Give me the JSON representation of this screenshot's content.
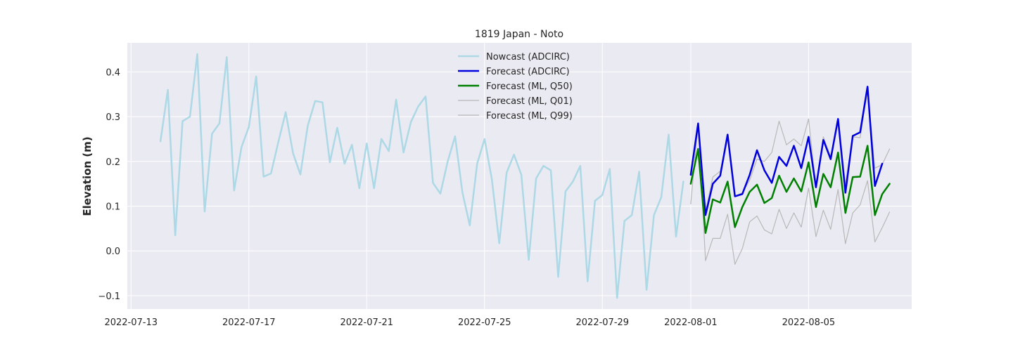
{
  "chart_data": {
    "type": "line",
    "title": "1819 Japan - Noto",
    "xlabel": "",
    "ylabel": "Elevation (m)",
    "xlim": [
      "2022-07-12T21:00",
      "2022-08-08T12:00"
    ],
    "ylim": [
      -0.13,
      0.465
    ],
    "xticks": [
      "2022-07-13",
      "2022-07-17",
      "2022-07-21",
      "2022-07-25",
      "2022-07-29",
      "2022-08-01",
      "2022-08-05"
    ],
    "yticks": [
      -0.1,
      0.0,
      0.1,
      0.2,
      0.3,
      0.4
    ],
    "ytick_labels": [
      "−0.1",
      "0.0",
      "0.1",
      "0.2",
      "0.3",
      "0.4"
    ],
    "grid": true,
    "legend_position": "top-center",
    "series": [
      {
        "name": "Nowcast (ADCIRC)",
        "color": "#add8e6",
        "width": 2.5,
        "x": [
          "2022-07-14T00:00",
          "2022-07-14T06:00",
          "2022-07-14T12:00",
          "2022-07-14T18:00",
          "2022-07-15T00:00",
          "2022-07-15T06:00",
          "2022-07-15T12:00",
          "2022-07-15T18:00",
          "2022-07-16T00:00",
          "2022-07-16T06:00",
          "2022-07-16T12:00",
          "2022-07-16T18:00",
          "2022-07-17T00:00",
          "2022-07-17T06:00",
          "2022-07-17T12:00",
          "2022-07-17T18:00",
          "2022-07-18T00:00",
          "2022-07-18T06:00",
          "2022-07-18T12:00",
          "2022-07-18T18:00",
          "2022-07-19T00:00",
          "2022-07-19T06:00",
          "2022-07-19T12:00",
          "2022-07-19T18:00",
          "2022-07-20T00:00",
          "2022-07-20T06:00",
          "2022-07-20T12:00",
          "2022-07-20T18:00",
          "2022-07-21T00:00",
          "2022-07-21T06:00",
          "2022-07-21T12:00",
          "2022-07-21T18:00",
          "2022-07-22T00:00",
          "2022-07-22T06:00",
          "2022-07-22T12:00",
          "2022-07-22T18:00",
          "2022-07-23T00:00",
          "2022-07-23T06:00",
          "2022-07-23T12:00",
          "2022-07-23T18:00",
          "2022-07-24T00:00",
          "2022-07-24T06:00",
          "2022-07-24T12:00",
          "2022-07-24T18:00",
          "2022-07-25T00:00",
          "2022-07-25T06:00",
          "2022-07-25T12:00",
          "2022-07-25T18:00",
          "2022-07-26T00:00",
          "2022-07-26T06:00",
          "2022-07-26T12:00",
          "2022-07-26T18:00",
          "2022-07-27T00:00",
          "2022-07-27T06:00",
          "2022-07-27T12:00",
          "2022-07-27T18:00",
          "2022-07-28T00:00",
          "2022-07-28T06:00",
          "2022-07-28T12:00",
          "2022-07-28T18:00",
          "2022-07-29T00:00",
          "2022-07-29T06:00",
          "2022-07-29T12:00",
          "2022-07-29T18:00",
          "2022-07-30T00:00",
          "2022-07-30T06:00",
          "2022-07-30T12:00",
          "2022-07-30T18:00",
          "2022-07-31T00:00",
          "2022-07-31T06:00",
          "2022-07-31T12:00",
          "2022-07-31T18:00"
        ],
        "y": [
          0.245,
          0.36,
          0.035,
          0.29,
          0.3,
          0.44,
          0.088,
          0.262,
          0.285,
          0.433,
          0.135,
          0.232,
          0.277,
          0.39,
          0.166,
          0.173,
          0.243,
          0.31,
          0.218,
          0.171,
          0.28,
          0.335,
          0.332,
          0.198,
          0.275,
          0.195,
          0.237,
          0.14,
          0.24,
          0.14,
          0.25,
          0.223,
          0.338,
          0.22,
          0.288,
          0.323,
          0.345,
          0.152,
          0.128,
          0.2,
          0.256,
          0.13,
          0.057,
          0.195,
          0.25,
          0.16,
          0.017,
          0.175,
          0.215,
          0.17,
          -0.02,
          0.162,
          0.19,
          0.18,
          -0.058,
          0.133,
          0.155,
          0.19,
          -0.068,
          0.112,
          0.125,
          0.183,
          -0.105,
          0.067,
          0.08,
          0.177,
          -0.087,
          0.08,
          0.12,
          0.26,
          0.032,
          0.155
        ]
      },
      {
        "name": "Forecast (ADCIRC)",
        "color": "#0000dd",
        "width": 2.5,
        "x": [
          "2022-08-01T00:00",
          "2022-08-01T06:00",
          "2022-08-01T12:00",
          "2022-08-01T18:00",
          "2022-08-02T00:00",
          "2022-08-02T06:00",
          "2022-08-02T12:00",
          "2022-08-02T18:00",
          "2022-08-03T00:00",
          "2022-08-03T06:00",
          "2022-08-03T12:00",
          "2022-08-03T18:00",
          "2022-08-04T00:00",
          "2022-08-04T06:00",
          "2022-08-04T12:00",
          "2022-08-04T18:00",
          "2022-08-05T00:00",
          "2022-08-05T06:00",
          "2022-08-05T12:00",
          "2022-08-05T18:00",
          "2022-08-06T00:00",
          "2022-08-06T06:00",
          "2022-08-06T12:00",
          "2022-08-06T18:00",
          "2022-08-07T00:00",
          "2022-08-07T06:00",
          "2022-08-07T12:00"
        ],
        "y": [
          0.17,
          0.285,
          0.08,
          0.15,
          0.168,
          0.26,
          0.122,
          0.127,
          0.17,
          0.225,
          0.18,
          0.152,
          0.21,
          0.19,
          0.235,
          0.185,
          0.255,
          0.142,
          0.248,
          0.205,
          0.295,
          0.13,
          0.257,
          0.265,
          0.367,
          0.145,
          0.195
        ]
      },
      {
        "name": "Forecast (ML, Q50)",
        "color": "#008000",
        "width": 2.5,
        "x": [
          "2022-08-01T00:00",
          "2022-08-01T06:00",
          "2022-08-01T12:00",
          "2022-08-01T18:00",
          "2022-08-02T00:00",
          "2022-08-02T06:00",
          "2022-08-02T12:00",
          "2022-08-02T18:00",
          "2022-08-03T00:00",
          "2022-08-03T06:00",
          "2022-08-03T12:00",
          "2022-08-03T18:00",
          "2022-08-04T00:00",
          "2022-08-04T06:00",
          "2022-08-04T12:00",
          "2022-08-04T18:00",
          "2022-08-05T00:00",
          "2022-08-05T06:00",
          "2022-08-05T12:00",
          "2022-08-05T18:00",
          "2022-08-06T00:00",
          "2022-08-06T06:00",
          "2022-08-06T12:00",
          "2022-08-06T18:00",
          "2022-08-07T00:00",
          "2022-08-07T06:00",
          "2022-08-07T12:00",
          "2022-08-07T18:00"
        ],
        "y": [
          0.15,
          0.228,
          0.04,
          0.115,
          0.108,
          0.155,
          0.053,
          0.098,
          0.132,
          0.148,
          0.107,
          0.118,
          0.168,
          0.132,
          0.162,
          0.133,
          0.198,
          0.098,
          0.172,
          0.142,
          0.22,
          0.085,
          0.165,
          0.166,
          0.235,
          0.08,
          0.127,
          0.15
        ]
      },
      {
        "name": "Forecast (ML, Q01)",
        "color": "#b8b8b8",
        "width": 1.2,
        "x": [
          "2022-08-01T00:00",
          "2022-08-01T06:00",
          "2022-08-01T12:00",
          "2022-08-01T18:00",
          "2022-08-02T00:00",
          "2022-08-02T06:00",
          "2022-08-02T12:00",
          "2022-08-02T18:00",
          "2022-08-03T00:00",
          "2022-08-03T06:00",
          "2022-08-03T12:00",
          "2022-08-03T18:00",
          "2022-08-04T00:00",
          "2022-08-04T06:00",
          "2022-08-04T12:00",
          "2022-08-04T18:00",
          "2022-08-05T00:00",
          "2022-08-05T06:00",
          "2022-08-05T12:00",
          "2022-08-05T18:00",
          "2022-08-06T00:00",
          "2022-08-06T06:00",
          "2022-08-06T12:00",
          "2022-08-06T18:00",
          "2022-08-07T00:00",
          "2022-08-07T06:00",
          "2022-08-07T12:00",
          "2022-08-07T18:00"
        ],
        "y": [
          0.105,
          0.285,
          -0.022,
          0.028,
          0.028,
          0.082,
          -0.03,
          0.005,
          0.065,
          0.078,
          0.047,
          0.038,
          0.093,
          0.05,
          0.085,
          0.053,
          0.14,
          0.032,
          0.091,
          0.048,
          0.137,
          0.016,
          0.085,
          0.103,
          0.157,
          0.02,
          0.052,
          0.087
        ]
      },
      {
        "name": "Forecast (ML, Q99)",
        "color": "#b8b8b8",
        "width": 1.2,
        "x": [
          "2022-08-01T00:00",
          "2022-08-01T06:00",
          "2022-08-01T12:00",
          "2022-08-01T18:00",
          "2022-08-02T00:00",
          "2022-08-02T06:00",
          "2022-08-02T12:00",
          "2022-08-02T18:00",
          "2022-08-03T00:00",
          "2022-08-03T06:00",
          "2022-08-03T12:00",
          "2022-08-03T18:00",
          "2022-08-04T00:00",
          "2022-08-04T06:00",
          "2022-08-04T12:00",
          "2022-08-04T18:00",
          "2022-08-05T00:00",
          "2022-08-05T06:00",
          "2022-08-05T12:00",
          "2022-08-05T18:00",
          "2022-08-06T00:00",
          "2022-08-06T06:00",
          "2022-08-06T12:00",
          "2022-08-06T18:00",
          "2022-08-07T00:00",
          "2022-08-07T06:00",
          "2022-08-07T12:00",
          "2022-08-07T18:00"
        ],
        "y": [
          0.17,
          0.28,
          0.088,
          0.165,
          0.178,
          0.255,
          0.122,
          0.13,
          0.158,
          0.205,
          0.2,
          0.22,
          0.29,
          0.237,
          0.25,
          0.235,
          0.295,
          0.143,
          0.255,
          0.21,
          0.292,
          0.15,
          0.255,
          0.253,
          0.36,
          0.185,
          0.193,
          0.228
        ]
      }
    ]
  }
}
